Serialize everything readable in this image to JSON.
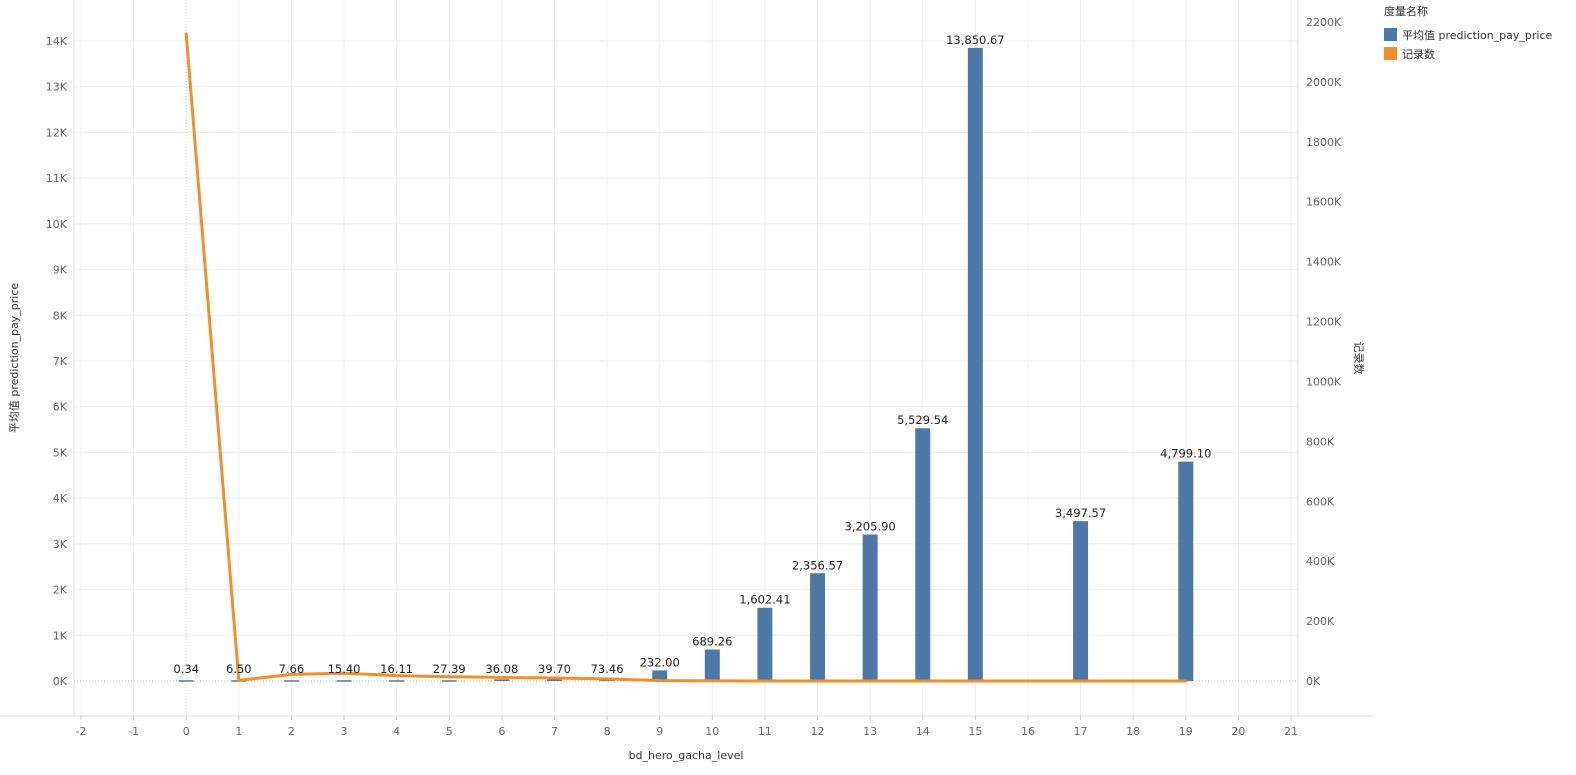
{
  "legend": {
    "title": "度量名称",
    "items": [
      {
        "label": "平均值 prediction_pay_price",
        "color": "#4e79a7"
      },
      {
        "label": "记录数",
        "color": "#f28e2b"
      }
    ]
  },
  "chart_data": {
    "type": "bar",
    "xlabel": "bd_hero_gacha_level",
    "ylabel": "平均值 prediction_pay_price",
    "y2label": "记录数",
    "xlim": [
      -2,
      21
    ],
    "ylim": [
      -700,
      14700
    ],
    "y2lim": [
      -112000,
      2352000
    ],
    "x_ticks": [
      "-2",
      "-1",
      "0",
      "1",
      "2",
      "3",
      "4",
      "5",
      "6",
      "7",
      "8",
      "9",
      "10",
      "11",
      "12",
      "13",
      "14",
      "15",
      "16",
      "17",
      "18",
      "19",
      "20",
      "21"
    ],
    "y_ticks": [
      "0K",
      "1K",
      "2K",
      "3K",
      "4K",
      "5K",
      "6K",
      "7K",
      "8K",
      "9K",
      "10K",
      "11K",
      "12K",
      "13K",
      "14K"
    ],
    "y2_ticks": [
      "0K",
      "200K",
      "400K",
      "600K",
      "800K",
      "1000K",
      "1200K",
      "1400K",
      "1600K",
      "1800K",
      "2000K",
      "2200K"
    ],
    "legend_position": "top-right",
    "grid": true,
    "series": [
      {
        "name": "平均值 prediction_pay_price",
        "type": "bar",
        "axis": "left",
        "color": "#4e79a7",
        "x": [
          0,
          1,
          2,
          3,
          4,
          5,
          6,
          7,
          8,
          9,
          10,
          11,
          12,
          13,
          14,
          15,
          17,
          19
        ],
        "values": [
          0.34,
          6.5,
          7.66,
          15.4,
          16.11,
          27.39,
          36.08,
          39.7,
          73.46,
          232.0,
          689.26,
          1602.41,
          2356.57,
          3205.9,
          5529.54,
          13850.67,
          3497.57,
          4799.1
        ],
        "labels": [
          "0.34",
          "6.50",
          "7.66",
          "15.40",
          "16.11",
          "27.39",
          "36.08",
          "39.70",
          "73.46",
          "232.00",
          "689.26",
          "1,602.41",
          "2,356.57",
          "3,205.90",
          "5,529.54",
          "13,850.67",
          "3,497.57",
          "4,799.10"
        ]
      },
      {
        "name": "记录数",
        "type": "line",
        "axis": "right",
        "color": "#f28e2b",
        "x": [
          0,
          1,
          2,
          3,
          4,
          5,
          6,
          7,
          8,
          9,
          10,
          11,
          12,
          13,
          14,
          15,
          17,
          19
        ],
        "values": [
          2160000,
          2000,
          22000,
          26000,
          18000,
          14000,
          12000,
          10000,
          7000,
          1500,
          300,
          100,
          60,
          30,
          20,
          5,
          3,
          1
        ]
      }
    ]
  }
}
